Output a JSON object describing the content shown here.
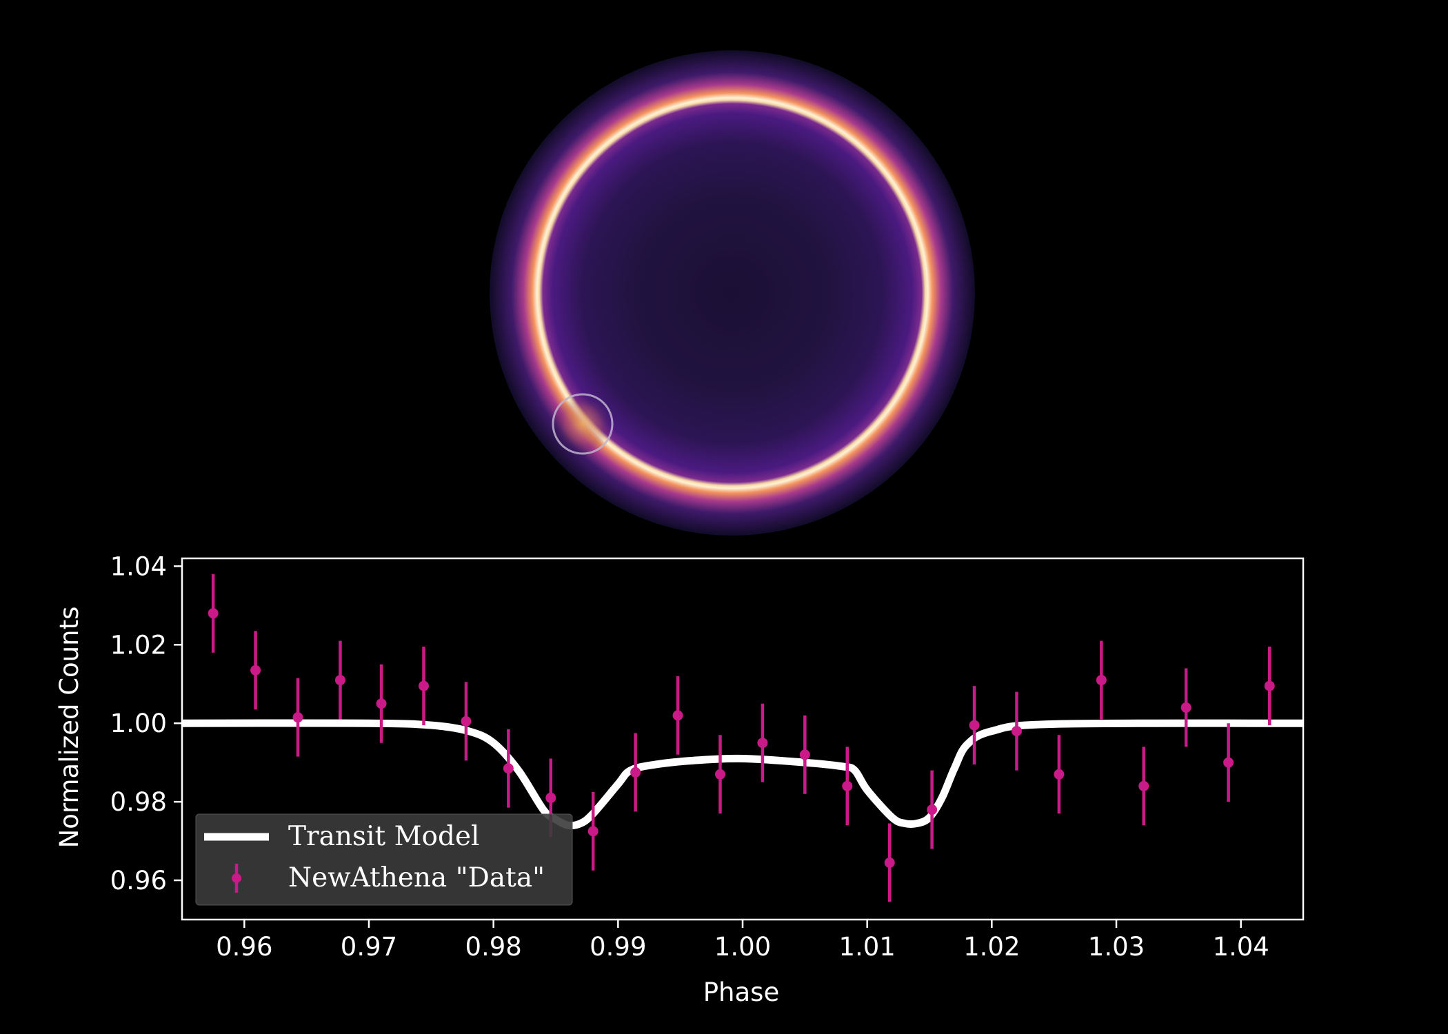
{
  "star_image": {
    "description_free": true,
    "colormap": "magma",
    "star_disk_color": "#20123e",
    "limb_glow_color": "#ffe9b8",
    "halo_color": "#5a1f7a",
    "planet_outline_color": "#bfb4cc"
  },
  "chart_data": {
    "type": "scatter",
    "title": "",
    "xlabel": "Phase",
    "ylabel": "Normalized Counts",
    "xlim": [
      0.955,
      1.045
    ],
    "ylim": [
      0.95,
      1.042
    ],
    "xticks": [
      0.96,
      0.97,
      0.98,
      0.99,
      1.0,
      1.01,
      1.02,
      1.03,
      1.04
    ],
    "xtick_labels": [
      "0.96",
      "0.97",
      "0.98",
      "0.99",
      "1.00",
      "1.01",
      "1.02",
      "1.03",
      "1.04"
    ],
    "yticks": [
      0.96,
      0.98,
      1.0,
      1.02,
      1.04
    ],
    "ytick_labels": [
      "0.96",
      "0.98",
      "1.00",
      "1.02",
      "1.04"
    ],
    "grid": false,
    "legend_position": "lower-left",
    "series": [
      {
        "name": "Transit Model",
        "kind": "line",
        "color": "#ffffff",
        "x": [
          0.955,
          0.97,
          0.975,
          0.978,
          0.98,
          0.982,
          0.984,
          0.985,
          0.986,
          0.987,
          0.988,
          0.99,
          0.991,
          0.993,
          0.996,
          1.0,
          1.005,
          1.008,
          1.009,
          1.01,
          1.012,
          1.013,
          1.014,
          1.015,
          1.016,
          1.017,
          1.018,
          1.02,
          1.025,
          1.045
        ],
        "y": [
          1.0,
          1.0,
          0.9995,
          0.998,
          0.995,
          0.988,
          0.978,
          0.9755,
          0.974,
          0.9745,
          0.977,
          0.9845,
          0.988,
          0.9895,
          0.9905,
          0.991,
          0.99,
          0.989,
          0.988,
          0.983,
          0.976,
          0.9745,
          0.9745,
          0.976,
          0.981,
          0.9885,
          0.9945,
          0.998,
          0.9998,
          1.0
        ]
      },
      {
        "name": "NewAthena \"Data\"",
        "kind": "errorbar",
        "color": "#c91a87",
        "x": [
          0.9575,
          0.9609,
          0.9643,
          0.9677,
          0.971,
          0.9744,
          0.9778,
          0.9812,
          0.9846,
          0.988,
          0.9914,
          0.9948,
          0.9982,
          1.0016,
          1.005,
          1.0084,
          1.0118,
          1.0152,
          1.0186,
          1.022,
          1.0254,
          1.0288,
          1.0322,
          1.0356,
          1.039,
          1.0423
        ],
        "y": [
          1.028,
          1.0135,
          1.0015,
          1.011,
          1.005,
          1.0095,
          1.0005,
          0.9885,
          0.981,
          0.9725,
          0.9875,
          1.002,
          0.987,
          0.995,
          0.992,
          0.984,
          0.9645,
          0.978,
          0.9995,
          0.998,
          0.987,
          1.011,
          0.984,
          1.004,
          0.99,
          1.0095
        ],
        "yerr": 0.01
      }
    ]
  }
}
